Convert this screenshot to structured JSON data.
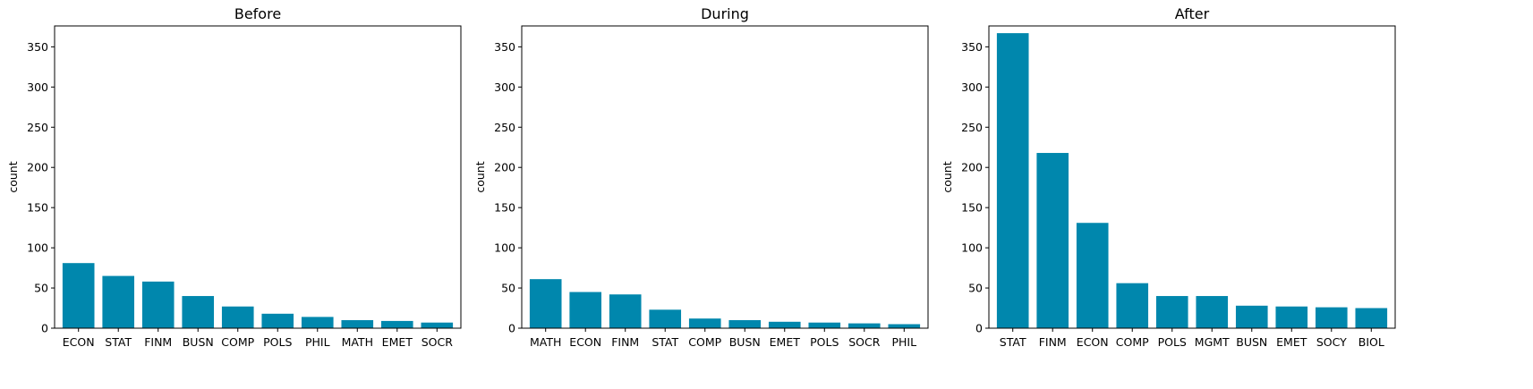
{
  "colors": {
    "bar": "#0087ad",
    "axis": "#000000",
    "background": "#ffffff"
  },
  "chart_data": [
    {
      "type": "bar",
      "title": "Before",
      "ylabel": "count",
      "xlabel": "",
      "ylim": [
        0,
        376
      ],
      "yticks": [
        0,
        50,
        100,
        150,
        200,
        250,
        300,
        350
      ],
      "grid": false,
      "categories": [
        "ECON",
        "STAT",
        "FINM",
        "BUSN",
        "COMP",
        "POLS",
        "PHIL",
        "MATH",
        "EMET",
        "SOCR"
      ],
      "values": [
        81,
        65,
        58,
        40,
        27,
        18,
        14,
        10,
        9,
        7
      ]
    },
    {
      "type": "bar",
      "title": "During",
      "ylabel": "count",
      "xlabel": "",
      "ylim": [
        0,
        376
      ],
      "yticks": [
        0,
        50,
        100,
        150,
        200,
        250,
        300,
        350
      ],
      "grid": false,
      "categories": [
        "MATH",
        "ECON",
        "FINM",
        "STAT",
        "COMP",
        "BUSN",
        "EMET",
        "POLS",
        "SOCR",
        "PHIL"
      ],
      "values": [
        61,
        45,
        42,
        23,
        12,
        10,
        8,
        7,
        6,
        5
      ]
    },
    {
      "type": "bar",
      "title": "After",
      "ylabel": "count",
      "xlabel": "",
      "ylim": [
        0,
        376
      ],
      "yticks": [
        0,
        50,
        100,
        150,
        200,
        250,
        300,
        350
      ],
      "grid": false,
      "categories": [
        "STAT",
        "FINM",
        "ECON",
        "COMP",
        "POLS",
        "MGMT",
        "BUSN",
        "EMET",
        "SOCY",
        "BIOL"
      ],
      "values": [
        367,
        218,
        131,
        56,
        40,
        40,
        28,
        27,
        26,
        25
      ]
    }
  ]
}
